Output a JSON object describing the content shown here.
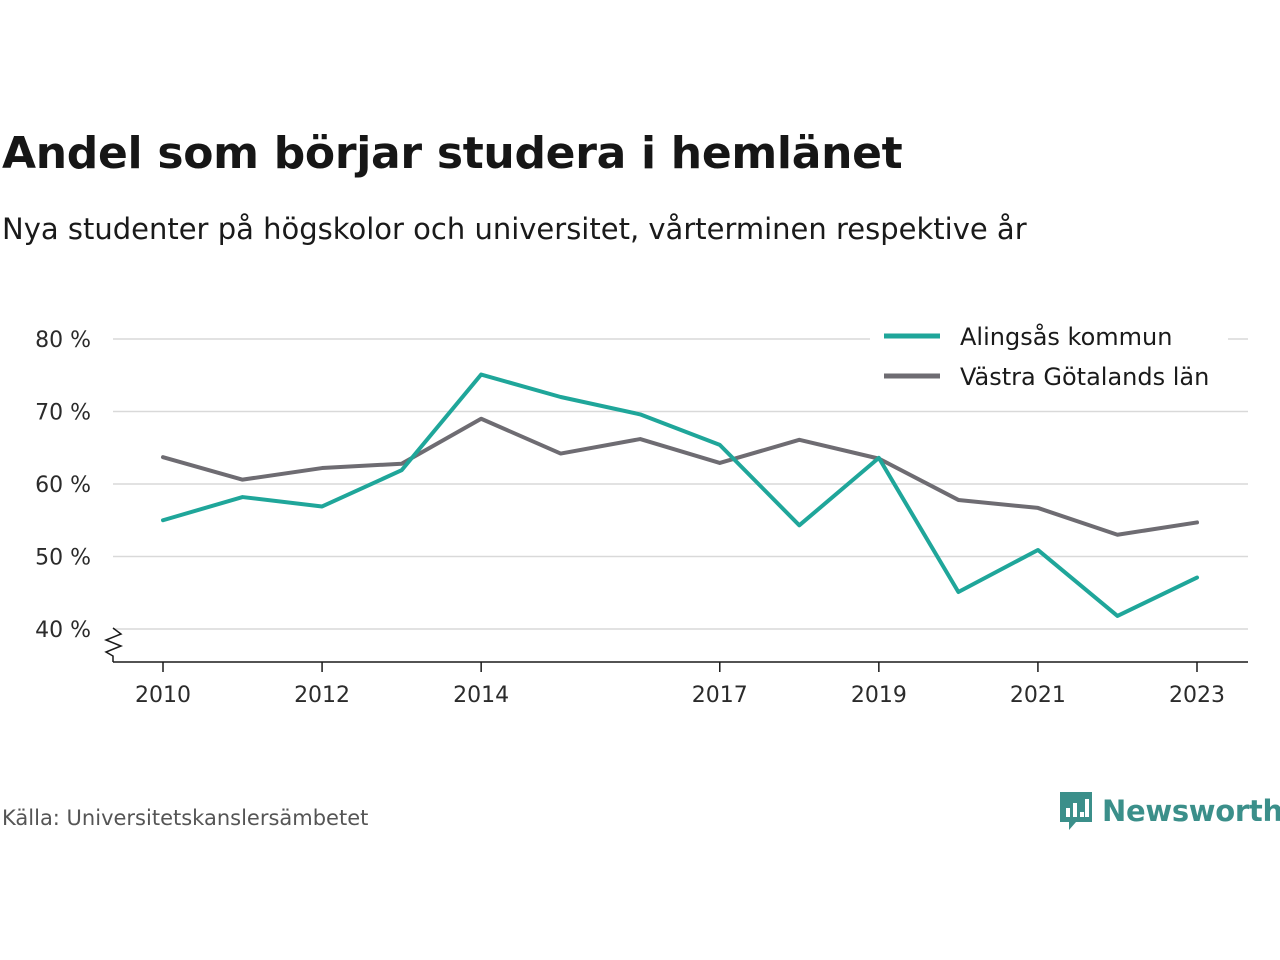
{
  "title": "Andel som börjar studera i hemlänet",
  "subtitle": "Nya studenter på högskolor och universitet, vårterminen respektive år",
  "source": "Källa: Universitetskanslersämbetet",
  "brand": {
    "name": "Newsworthy",
    "icon": "bar-chart-speech-bubble-icon",
    "color": "#3b8f8a"
  },
  "chart_data": {
    "type": "line",
    "x": [
      2010,
      2011,
      2012,
      2013,
      2014,
      2015,
      2016,
      2017,
      2018,
      2019,
      2020,
      2021,
      2022,
      2023
    ],
    "x_ticks": [
      2010,
      2012,
      2014,
      2017,
      2019,
      2021,
      2023
    ],
    "x_tick_labels": [
      "2010",
      "2012",
      "2014",
      "2017",
      "2019",
      "2021",
      "2023"
    ],
    "y_ticks": [
      40,
      50,
      60,
      70,
      80
    ],
    "y_tick_labels": [
      "40 %",
      "50 %",
      "60 %",
      "70 %",
      "80 %"
    ],
    "ylim": [
      40,
      80
    ],
    "grid": "horizontal",
    "axis_break": "y",
    "legend_position": "top-right",
    "series": [
      {
        "name": "Alingsås kommun",
        "color": "#1fa69a",
        "values": [
          55.0,
          58.2,
          56.9,
          61.9,
          75.1,
          72.0,
          69.6,
          65.4,
          54.3,
          63.6,
          45.1,
          50.9,
          41.8,
          47.1
        ]
      },
      {
        "name": "Västra Götalands län",
        "color": "#6e6c72",
        "values": [
          63.7,
          60.6,
          62.2,
          62.8,
          69.0,
          64.2,
          66.2,
          62.9,
          66.1,
          63.5,
          57.8,
          56.7,
          53.0,
          54.7
        ]
      }
    ]
  }
}
